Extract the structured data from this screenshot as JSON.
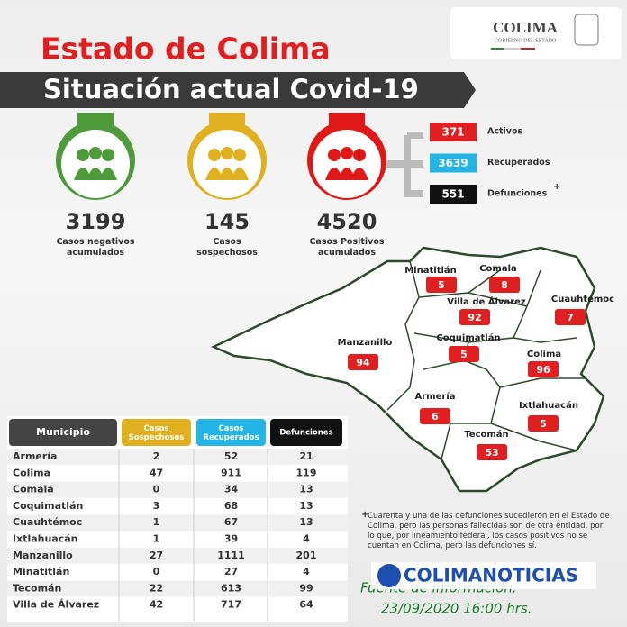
{
  "logo": {
    "name": "COLIMA",
    "subtitle": "GOBIERNO DEL ESTADO"
  },
  "header": {
    "title": "Estado de Colima",
    "subtitle": "Situación actual Covid-19"
  },
  "stats": [
    {
      "value": "3199",
      "label": "Casos negativos acumulados"
    },
    {
      "value": "145",
      "label": "Casos sospechosos"
    },
    {
      "value": "4520",
      "label": "Casos Positivos acumulados"
    }
  ],
  "breakdown": [
    {
      "value": "371",
      "label": "Activos"
    },
    {
      "value": "3639",
      "label": "Recuperados"
    },
    {
      "value": "551",
      "label": "Defunciones"
    }
  ],
  "breakdown_mark": "+",
  "map": [
    {
      "name": "Minatitlán",
      "value": "5"
    },
    {
      "name": "Comala",
      "value": "8"
    },
    {
      "name": "Villa de Álvarez",
      "value": "92"
    },
    {
      "name": "Cuauhtémoc",
      "value": "7"
    },
    {
      "name": "Manzanillo",
      "value": "94"
    },
    {
      "name": "Coquimatlán",
      "value": "5"
    },
    {
      "name": "Colima",
      "value": "96"
    },
    {
      "name": "Armería",
      "value": "6"
    },
    {
      "name": "Ixtlahuacán",
      "value": "5"
    },
    {
      "name": "Tecomán",
      "value": "53"
    }
  ],
  "table": {
    "headers": [
      "Municipio",
      "Casos Sospechosos",
      "Casos Recuperados",
      "Defunciones"
    ],
    "rows": [
      [
        "Armería",
        "2",
        "52",
        "21"
      ],
      [
        "Colima",
        "47",
        "911",
        "119"
      ],
      [
        "Comala",
        "0",
        "34",
        "13"
      ],
      [
        "Coquimatlán",
        "3",
        "68",
        "13"
      ],
      [
        "Cuauhtémoc",
        "1",
        "67",
        "13"
      ],
      [
        "Ixtlahuacán",
        "1",
        "39",
        "4"
      ],
      [
        "Manzanillo",
        "27",
        "1111",
        "201"
      ],
      [
        "Minatitlán",
        "0",
        "27",
        "4"
      ],
      [
        "Tecomán",
        "22",
        "613",
        "99"
      ],
      [
        "Villa de Álvarez",
        "42",
        "717",
        "64"
      ]
    ]
  },
  "footnote": {
    "mark": "+",
    "text": "Cuarenta y una de las defunciones sucedieron en el Estado de Colima, pero las personas fallecidas son de otra entidad, por lo que, por lineamiento federal, los casos positivos no se cuentan en Colima, pero las defunciones sí."
  },
  "watermark": "COLIMANOTICIAS",
  "source": {
    "label": "Fuente de información:",
    "date": "23/09/2020 16:00 hrs."
  }
}
